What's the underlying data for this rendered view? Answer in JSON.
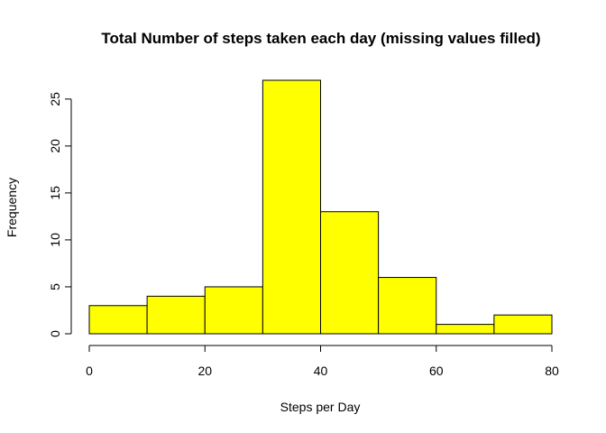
{
  "chart_data": {
    "type": "bar",
    "title": "Total Number of steps taken each day (missing values filled)",
    "xlabel": "Steps per Day",
    "ylabel": "Frequency",
    "bins": [
      [
        0,
        10
      ],
      [
        10,
        20
      ],
      [
        20,
        30
      ],
      [
        30,
        40
      ],
      [
        40,
        50
      ],
      [
        50,
        60
      ],
      [
        60,
        70
      ],
      [
        70,
        80
      ]
    ],
    "values": [
      3,
      4,
      5,
      27,
      13,
      6,
      1,
      2
    ],
    "xlim": [
      0,
      80
    ],
    "ylim": [
      0,
      27
    ],
    "xticks": [
      0,
      20,
      40,
      60,
      80
    ],
    "yticks": [
      0,
      5,
      10,
      15,
      20,
      25
    ],
    "bar_color": "#FFFF00",
    "grid": false,
    "legend": "none"
  }
}
